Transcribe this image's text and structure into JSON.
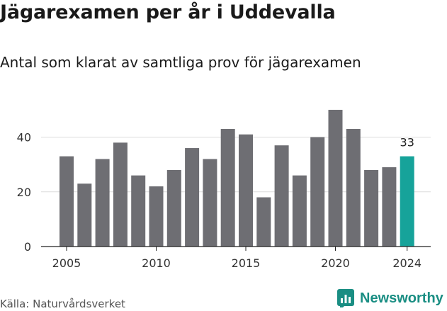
{
  "header": {
    "title": "Jägarexamen per år i Uddevalla",
    "subtitle": "Antal som klarat av samtliga prov för jägarexamen"
  },
  "footer": {
    "source": "Källa: Naturvårdsverket",
    "brand": "Newsworthy"
  },
  "colors": {
    "bar": "#6e6e73",
    "highlight": "#16a39a",
    "brand": "#1a8e83"
  },
  "chart_data": {
    "type": "bar",
    "categories": [
      "2005",
      "2006",
      "2007",
      "2008",
      "2009",
      "2010",
      "2011",
      "2012",
      "2013",
      "2014",
      "2015",
      "2016",
      "2017",
      "2018",
      "2019",
      "2020",
      "2021",
      "2022",
      "2023",
      "2024"
    ],
    "values": [
      33,
      23,
      32,
      38,
      26,
      22,
      28,
      36,
      32,
      43,
      41,
      18,
      37,
      26,
      40,
      50,
      43,
      28,
      29,
      33
    ],
    "x_tick_labels": [
      "2005",
      "2010",
      "2015",
      "2020",
      "2024"
    ],
    "y_ticks": [
      0,
      20,
      40
    ],
    "ylim": [
      0,
      50
    ],
    "highlight_index": 19,
    "highlight_label": "33",
    "grid": true
  }
}
